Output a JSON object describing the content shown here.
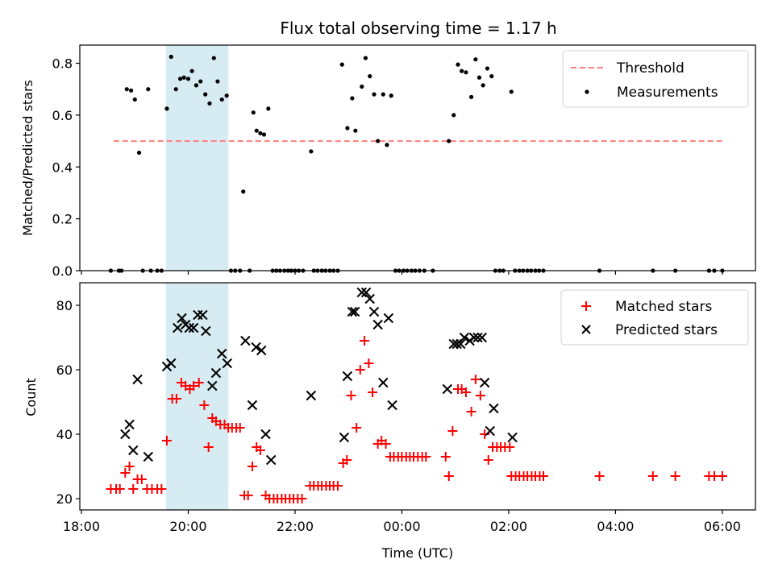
{
  "chart_data": [
    {
      "type": "scatter",
      "title": "Flux total observing time = 1.17 h",
      "xlabel": "",
      "ylabel": "Matched/Predicted stars",
      "ylim": [
        0.0,
        0.87
      ],
      "yticks": [
        "0.0",
        "0.2",
        "0.4",
        "0.6",
        "0.8"
      ],
      "highlight_span": {
        "x_start": 19.58,
        "x_end": 20.75,
        "color": "#add8e6"
      },
      "threshold": {
        "name": "Threshold",
        "value": 0.5,
        "x_start": 18.6,
        "x_end": 30.0,
        "color": "#ff7f7f"
      },
      "legend": {
        "placement": "top-right",
        "entries": [
          "Threshold",
          "Measurements"
        ]
      },
      "series": [
        {
          "name": "Measurements",
          "color": "#000000",
          "points": [
            [
              18.55,
              0
            ],
            [
              18.7,
              0
            ],
            [
              18.75,
              0
            ],
            [
              18.85,
              0.7
            ],
            [
              18.93,
              0.695
            ],
            [
              19.0,
              0.66
            ],
            [
              19.08,
              0.455
            ],
            [
              19.15,
              0
            ],
            [
              19.25,
              0.7
            ],
            [
              19.3,
              0
            ],
            [
              19.42,
              0
            ],
            [
              19.5,
              0
            ],
            [
              19.6,
              0.625
            ],
            [
              19.68,
              0.825
            ],
            [
              19.77,
              0.7
            ],
            [
              19.85,
              0.74
            ],
            [
              19.92,
              0.745
            ],
            [
              20.0,
              0.74
            ],
            [
              20.07,
              0.77
            ],
            [
              20.15,
              0.715
            ],
            [
              20.23,
              0.73
            ],
            [
              20.32,
              0.68
            ],
            [
              20.4,
              0.645
            ],
            [
              20.48,
              0.82
            ],
            [
              20.55,
              0.73
            ],
            [
              20.63,
              0.66
            ],
            [
              20.72,
              0.675
            ],
            [
              20.8,
              0
            ],
            [
              20.88,
              0
            ],
            [
              20.97,
              0
            ],
            [
              21.03,
              0.305
            ],
            [
              21.15,
              0
            ],
            [
              21.22,
              0.61
            ],
            [
              21.28,
              0.54
            ],
            [
              21.35,
              0.53
            ],
            [
              21.42,
              0.525
            ],
            [
              21.5,
              0.625
            ],
            [
              21.58,
              0
            ],
            [
              21.65,
              0
            ],
            [
              21.72,
              0
            ],
            [
              21.8,
              0
            ],
            [
              21.87,
              0
            ],
            [
              21.93,
              0
            ],
            [
              22.0,
              0
            ],
            [
              22.07,
              0
            ],
            [
              22.15,
              0
            ],
            [
              22.3,
              0.46
            ],
            [
              22.35,
              0
            ],
            [
              22.42,
              0
            ],
            [
              22.5,
              0
            ],
            [
              22.57,
              0
            ],
            [
              22.65,
              0
            ],
            [
              22.72,
              0
            ],
            [
              22.8,
              0
            ],
            [
              22.88,
              0.795
            ],
            [
              22.98,
              0.55
            ],
            [
              23.07,
              0.665
            ],
            [
              23.13,
              0.54
            ],
            [
              23.25,
              0.71
            ],
            [
              23.32,
              0.82
            ],
            [
              23.4,
              0.75
            ],
            [
              23.48,
              0.68
            ],
            [
              23.55,
              0.5
            ],
            [
              23.65,
              0.68
            ],
            [
              23.72,
              0.485
            ],
            [
              23.8,
              0.675
            ],
            [
              23.88,
              0
            ],
            [
              23.95,
              0
            ],
            [
              24.03,
              0
            ],
            [
              24.1,
              0
            ],
            [
              24.18,
              0
            ],
            [
              24.25,
              0
            ],
            [
              24.33,
              0
            ],
            [
              24.42,
              0
            ],
            [
              24.58,
              0
            ],
            [
              24.88,
              0.5
            ],
            [
              24.97,
              0.6
            ],
            [
              25.05,
              0.795
            ],
            [
              25.12,
              0.77
            ],
            [
              25.2,
              0.765
            ],
            [
              25.3,
              0.67
            ],
            [
              25.38,
              0.815
            ],
            [
              25.45,
              0.745
            ],
            [
              25.52,
              0.715
            ],
            [
              25.6,
              0.78
            ],
            [
              25.68,
              0.75
            ],
            [
              25.75,
              0
            ],
            [
              25.83,
              0
            ],
            [
              25.9,
              0
            ],
            [
              26.05,
              0.69
            ],
            [
              26.12,
              0
            ],
            [
              26.2,
              0
            ],
            [
              26.27,
              0
            ],
            [
              26.35,
              0
            ],
            [
              26.42,
              0
            ],
            [
              26.5,
              0
            ],
            [
              26.57,
              0
            ],
            [
              26.65,
              0
            ],
            [
              27.7,
              0
            ],
            [
              28.7,
              0
            ],
            [
              29.12,
              0
            ],
            [
              29.75,
              0
            ],
            [
              29.85,
              0
            ],
            [
              30.0,
              0
            ]
          ]
        }
      ]
    },
    {
      "type": "scatter",
      "title": "",
      "xlabel": "Time (UTC)",
      "ylabel": "Count",
      "ylim": [
        16.5,
        87
      ],
      "yticks": [
        "20",
        "40",
        "60",
        "80"
      ],
      "xlim": [
        17.97,
        30.62
      ],
      "xticks": [
        {
          "value": 18,
          "label": "18:00"
        },
        {
          "value": 20,
          "label": "20:00"
        },
        {
          "value": 22,
          "label": "22:00"
        },
        {
          "value": 24,
          "label": "00:00"
        },
        {
          "value": 26,
          "label": "02:00"
        },
        {
          "value": 28,
          "label": "04:00"
        },
        {
          "value": 30,
          "label": "06:00"
        }
      ],
      "highlight_span": {
        "x_start": 19.58,
        "x_end": 20.75,
        "color": "#add8e6"
      },
      "legend": {
        "placement": "top-right",
        "entries": [
          "Matched stars",
          "Predicted stars"
        ]
      },
      "series": [
        {
          "name": "Matched stars",
          "marker": "plus",
          "color": "#ff0000",
          "points": [
            [
              18.55,
              23
            ],
            [
              18.65,
              23
            ],
            [
              18.72,
              23
            ],
            [
              18.82,
              28
            ],
            [
              18.9,
              30
            ],
            [
              18.97,
              23
            ],
            [
              19.05,
              26
            ],
            [
              19.13,
              26
            ],
            [
              19.23,
              23
            ],
            [
              19.32,
              23
            ],
            [
              19.42,
              23
            ],
            [
              19.5,
              23
            ],
            [
              19.6,
              38
            ],
            [
              19.7,
              51
            ],
            [
              19.78,
              51
            ],
            [
              19.87,
              56
            ],
            [
              19.95,
              55
            ],
            [
              20.03,
              54
            ],
            [
              20.1,
              55
            ],
            [
              20.2,
              56
            ],
            [
              20.3,
              49
            ],
            [
              20.38,
              36
            ],
            [
              20.45,
              45
            ],
            [
              20.52,
              44
            ],
            [
              20.6,
              43
            ],
            [
              20.68,
              43
            ],
            [
              20.75,
              42
            ],
            [
              20.82,
              42
            ],
            [
              20.9,
              42
            ],
            [
              20.97,
              42
            ],
            [
              21.05,
              21
            ],
            [
              21.12,
              21
            ],
            [
              21.2,
              30
            ],
            [
              21.28,
              36
            ],
            [
              21.35,
              35
            ],
            [
              21.45,
              21
            ],
            [
              21.52,
              20
            ],
            [
              21.6,
              20
            ],
            [
              21.67,
              20
            ],
            [
              21.75,
              20
            ],
            [
              21.82,
              20
            ],
            [
              21.9,
              20
            ],
            [
              21.97,
              20
            ],
            [
              22.05,
              20
            ],
            [
              22.13,
              20
            ],
            [
              22.28,
              24
            ],
            [
              22.35,
              24
            ],
            [
              22.43,
              24
            ],
            [
              22.5,
              24
            ],
            [
              22.58,
              24
            ],
            [
              22.65,
              24
            ],
            [
              22.72,
              24
            ],
            [
              22.8,
              24
            ],
            [
              22.9,
              31
            ],
            [
              22.97,
              32
            ],
            [
              23.05,
              52
            ],
            [
              23.15,
              42
            ],
            [
              23.22,
              60
            ],
            [
              23.3,
              69
            ],
            [
              23.38,
              62
            ],
            [
              23.45,
              53
            ],
            [
              23.55,
              37
            ],
            [
              23.62,
              38
            ],
            [
              23.7,
              37
            ],
            [
              23.78,
              33
            ],
            [
              23.85,
              33
            ],
            [
              23.93,
              33
            ],
            [
              24.0,
              33
            ],
            [
              24.08,
              33
            ],
            [
              24.15,
              33
            ],
            [
              24.22,
              33
            ],
            [
              24.3,
              33
            ],
            [
              24.38,
              33
            ],
            [
              24.45,
              33
            ],
            [
              24.82,
              33
            ],
            [
              24.88,
              27
            ],
            [
              24.95,
              41
            ],
            [
              25.05,
              54
            ],
            [
              25.12,
              54
            ],
            [
              25.2,
              53
            ],
            [
              25.3,
              47
            ],
            [
              25.38,
              57
            ],
            [
              25.47,
              52
            ],
            [
              25.55,
              40
            ],
            [
              25.62,
              32
            ],
            [
              25.7,
              36
            ],
            [
              25.78,
              36
            ],
            [
              25.85,
              36
            ],
            [
              25.93,
              36
            ],
            [
              26.02,
              36
            ],
            [
              26.05,
              27
            ],
            [
              26.13,
              27
            ],
            [
              26.2,
              27
            ],
            [
              26.28,
              27
            ],
            [
              26.35,
              27
            ],
            [
              26.43,
              27
            ],
            [
              26.5,
              27
            ],
            [
              26.58,
              27
            ],
            [
              26.65,
              27
            ],
            [
              27.7,
              27
            ],
            [
              28.7,
              27
            ],
            [
              29.12,
              27
            ],
            [
              29.75,
              27
            ],
            [
              29.85,
              27
            ],
            [
              30.0,
              27
            ]
          ]
        },
        {
          "name": "Predicted stars",
          "marker": "x",
          "color": "#000000",
          "points": [
            [
              18.82,
              40
            ],
            [
              18.9,
              43
            ],
            [
              18.97,
              35
            ],
            [
              19.05,
              57
            ],
            [
              19.25,
              33
            ],
            [
              19.6,
              61
            ],
            [
              19.68,
              62
            ],
            [
              19.8,
              73
            ],
            [
              19.88,
              76
            ],
            [
              19.95,
              74
            ],
            [
              20.02,
              73
            ],
            [
              20.1,
              73
            ],
            [
              20.18,
              77
            ],
            [
              20.27,
              77
            ],
            [
              20.33,
              72
            ],
            [
              20.45,
              55
            ],
            [
              20.52,
              59
            ],
            [
              20.63,
              65
            ],
            [
              20.73,
              62
            ],
            [
              21.07,
              69
            ],
            [
              21.2,
              49
            ],
            [
              21.27,
              67
            ],
            [
              21.37,
              66
            ],
            [
              21.45,
              40
            ],
            [
              21.55,
              32
            ],
            [
              22.3,
              52
            ],
            [
              22.92,
              39
            ],
            [
              22.98,
              58
            ],
            [
              23.07,
              78
            ],
            [
              23.12,
              78
            ],
            [
              23.25,
              84
            ],
            [
              23.33,
              84
            ],
            [
              23.4,
              82
            ],
            [
              23.48,
              78
            ],
            [
              23.55,
              74
            ],
            [
              23.65,
              56
            ],
            [
              23.75,
              76
            ],
            [
              23.82,
              49
            ],
            [
              24.85,
              54
            ],
            [
              24.97,
              68
            ],
            [
              25.03,
              68
            ],
            [
              25.1,
              68
            ],
            [
              25.17,
              70
            ],
            [
              25.27,
              69
            ],
            [
              25.35,
              70
            ],
            [
              25.42,
              70
            ],
            [
              25.5,
              70
            ],
            [
              25.55,
              56
            ],
            [
              25.65,
              41
            ],
            [
              25.72,
              48
            ],
            [
              26.07,
              39
            ]
          ]
        }
      ]
    }
  ]
}
